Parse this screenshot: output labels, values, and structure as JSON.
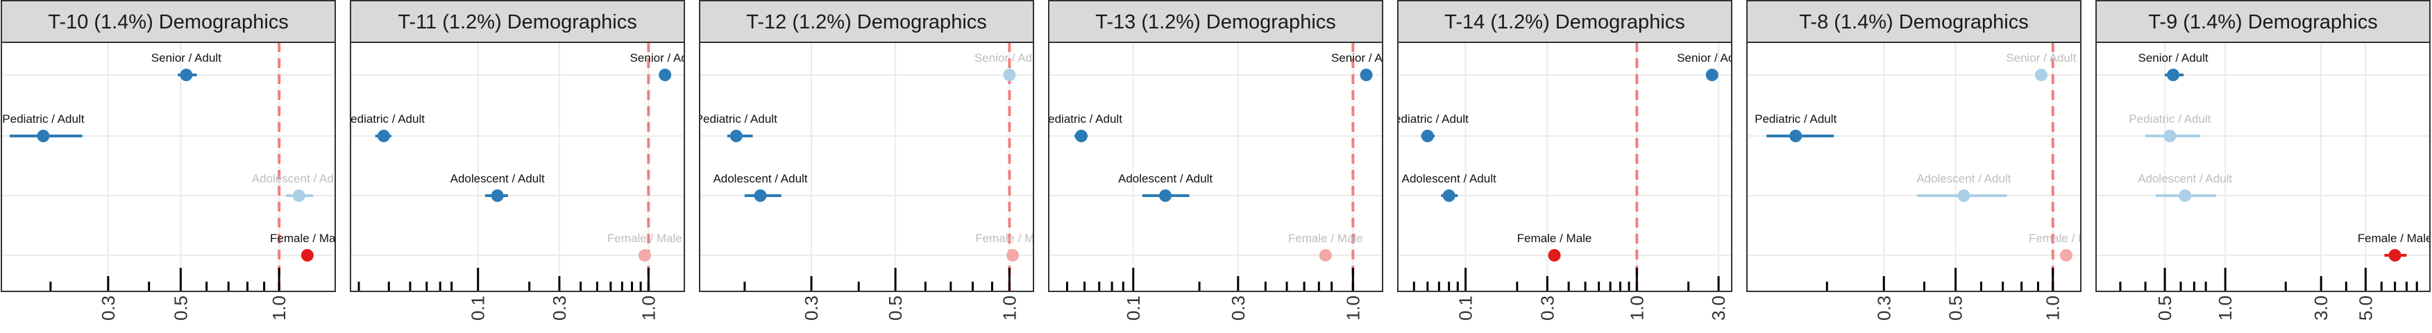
{
  "colors": {
    "male_or_adult_ref": "#d7191c",
    "strip_background": "#d9d9d9",
    "strip_border": "#333333",
    "panel_border": "#333333",
    "grid": "#ebebeb",
    "reference_line": "#f08080",
    "rug": "#000000",
    "significant_age": "#2c7bb6",
    "nonsignificant_age": "#abd0e6",
    "significant_sex": "#e31a1c",
    "nonsignificant_sex": "#f4a9a8"
  },
  "chart_data": [
    {
      "type": "forest",
      "title": "T-10 (1.4%) Demographics",
      "x_scale": "log",
      "xlim": [
        0.15,
        1.4
      ],
      "tick_labels": [
        "0.3",
        "0.5",
        "1.0"
      ],
      "ticks": [
        0.3,
        0.5,
        1.0
      ],
      "reference_line": 1.0,
      "rug": [
        0.2,
        0.3,
        0.4,
        0.5,
        0.6,
        0.7,
        0.8,
        0.9,
        1.0
      ],
      "rows": [
        {
          "label": "Senior / Adult",
          "estimate": 0.52,
          "lower": 0.49,
          "upper": 0.56,
          "significant": true,
          "kind": "age"
        },
        {
          "label": "Pediatric / Adult",
          "estimate": 0.19,
          "lower": 0.15,
          "upper": 0.25,
          "significant": true,
          "kind": "age"
        },
        {
          "label": "Adolescent / Adult",
          "estimate": 1.15,
          "lower": 1.05,
          "upper": 1.27,
          "significant": false,
          "kind": "age"
        },
        {
          "label": "Female / Male",
          "estimate": 1.22,
          "lower": 1.18,
          "upper": 1.26,
          "significant": true,
          "kind": "sex"
        }
      ]
    },
    {
      "type": "forest",
      "title": "T-11 (1.2%) Demographics",
      "x_scale": "log",
      "xlim": [
        0.02,
        1.45
      ],
      "tick_labels": [
        "0.1",
        "0.3",
        "1.0"
      ],
      "ticks": [
        0.1,
        0.3,
        1.0
      ],
      "reference_line": 1.0,
      "rug": [
        0.02,
        0.03,
        0.04,
        0.05,
        0.06,
        0.07,
        0.1,
        0.2,
        0.3,
        0.4,
        0.5,
        0.6,
        0.7,
        0.8,
        0.9,
        1.0
      ],
      "rows": [
        {
          "label": "Senior / Adult",
          "estimate": 1.25,
          "lower": 1.2,
          "upper": 1.3,
          "significant": true,
          "kind": "age"
        },
        {
          "label": "Pediatric / Adult",
          "estimate": 0.028,
          "lower": 0.025,
          "upper": 0.031,
          "significant": true,
          "kind": "age"
        },
        {
          "label": "Adolescent / Adult",
          "estimate": 0.13,
          "lower": 0.11,
          "upper": 0.15,
          "significant": true,
          "kind": "age"
        },
        {
          "label": "Female / Male",
          "estimate": 0.95,
          "lower": 0.92,
          "upper": 0.98,
          "significant": false,
          "kind": "sex"
        }
      ]
    },
    {
      "type": "forest",
      "title": "T-12 (1.2%) Demographics",
      "x_scale": "log",
      "xlim": [
        0.16,
        1.1
      ],
      "tick_labels": [
        "0.3",
        "0.5",
        "1.0"
      ],
      "ticks": [
        0.3,
        0.5,
        1.0
      ],
      "reference_line": 1.0,
      "rug": [
        0.2,
        0.3,
        0.4,
        0.5,
        0.6,
        0.7,
        0.8,
        0.9,
        1.0
      ],
      "rows": [
        {
          "label": "Senior / Adult",
          "estimate": 1.0,
          "lower": 0.97,
          "upper": 1.03,
          "significant": false,
          "kind": "age"
        },
        {
          "label": "Pediatric / Adult",
          "estimate": 0.19,
          "lower": 0.18,
          "upper": 0.21,
          "significant": true,
          "kind": "age"
        },
        {
          "label": "Adolescent / Adult",
          "estimate": 0.22,
          "lower": 0.2,
          "upper": 0.25,
          "significant": true,
          "kind": "age"
        },
        {
          "label": "Female / Male",
          "estimate": 1.02,
          "lower": 1.0,
          "upper": 1.04,
          "significant": false,
          "kind": "sex"
        }
      ]
    },
    {
      "type": "forest",
      "title": "T-13 (1.2%) Demographics",
      "x_scale": "log",
      "xlim": [
        0.045,
        1.25
      ],
      "tick_labels": [
        "0.1",
        "0.3",
        "1.0"
      ],
      "ticks": [
        0.1,
        0.3,
        1.0
      ],
      "reference_line": 1.0,
      "rug": [
        0.05,
        0.06,
        0.07,
        0.08,
        0.09,
        0.1,
        0.2,
        0.3,
        0.4,
        0.5,
        0.6,
        0.7,
        0.8,
        1.0
      ],
      "rows": [
        {
          "label": "Senior / Adult",
          "estimate": 1.15,
          "lower": 1.12,
          "upper": 1.18,
          "significant": true,
          "kind": "age"
        },
        {
          "label": "Pediatric / Adult",
          "estimate": 0.058,
          "lower": 0.054,
          "upper": 0.062,
          "significant": true,
          "kind": "age"
        },
        {
          "label": "Adolescent / Adult",
          "estimate": 0.14,
          "lower": 0.11,
          "upper": 0.18,
          "significant": true,
          "kind": "age"
        },
        {
          "label": "Female / Male",
          "estimate": 0.75,
          "lower": 0.72,
          "upper": 0.78,
          "significant": false,
          "kind": "sex"
        }
      ]
    },
    {
      "type": "forest",
      "title": "T-14 (1.2%) Demographics",
      "x_scale": "log",
      "xlim": [
        0.045,
        3.2
      ],
      "tick_labels": [
        "0.1",
        "0.3",
        "1.0",
        "3.0"
      ],
      "ticks": [
        0.1,
        0.3,
        1.0,
        3.0
      ],
      "reference_line": 1.0,
      "rug": [
        0.05,
        0.06,
        0.07,
        0.08,
        0.09,
        0.1,
        0.2,
        0.3,
        0.4,
        0.5,
        0.6,
        0.7,
        0.8,
        0.9,
        1.0,
        2.0,
        3.0
      ],
      "rows": [
        {
          "label": "Senior / Adult",
          "estimate": 2.75,
          "lower": 2.65,
          "upper": 2.85,
          "significant": true,
          "kind": "age"
        },
        {
          "label": "Pediatric / Adult",
          "estimate": 0.06,
          "lower": 0.055,
          "upper": 0.066,
          "significant": true,
          "kind": "age"
        },
        {
          "label": "Adolescent / Adult",
          "estimate": 0.08,
          "lower": 0.072,
          "upper": 0.09,
          "significant": true,
          "kind": "age"
        },
        {
          "label": "Female / Male",
          "estimate": 0.33,
          "lower": 0.315,
          "upper": 0.345,
          "significant": true,
          "kind": "sex"
        }
      ]
    },
    {
      "type": "forest",
      "title": "T-8 (1.4%) Demographics",
      "x_scale": "log",
      "xlim": [
        0.12,
        1.15
      ],
      "tick_labels": [
        "0.3",
        "0.5",
        "1.0"
      ],
      "ticks": [
        0.3,
        0.5,
        1.0
      ],
      "reference_line": 1.0,
      "rug": [
        0.2,
        0.3,
        0.4,
        0.5,
        0.6,
        0.7,
        0.8,
        0.9,
        1.0
      ],
      "rows": [
        {
          "label": "Senior / Adult",
          "estimate": 0.92,
          "lower": 0.88,
          "upper": 0.96,
          "significant": false,
          "kind": "age"
        },
        {
          "label": "Pediatric / Adult",
          "estimate": 0.16,
          "lower": 0.13,
          "upper": 0.21,
          "significant": true,
          "kind": "age"
        },
        {
          "label": "Adolescent / Adult",
          "estimate": 0.53,
          "lower": 0.38,
          "upper": 0.72,
          "significant": false,
          "kind": "age"
        },
        {
          "label": "Female / Male",
          "estimate": 1.1,
          "lower": 1.07,
          "upper": 1.13,
          "significant": false,
          "kind": "sex"
        }
      ]
    },
    {
      "type": "forest",
      "title": "T-9 (1.4%) Demographics",
      "x_scale": "log",
      "xlim": [
        0.25,
        9.5
      ],
      "tick_labels": [
        "0.5",
        "1.0",
        "3.0",
        "5.0"
      ],
      "ticks": [
        0.5,
        1.0,
        3.0,
        5.0
      ],
      "reference_line": null,
      "rug": [
        0.3,
        0.4,
        0.5,
        0.6,
        0.7,
        0.8,
        1.0,
        2.0,
        3.0,
        4.0,
        5.0,
        6.0,
        7.0,
        8.0,
        9.0
      ],
      "rows": [
        {
          "label": "Senior / Adult",
          "estimate": 0.55,
          "lower": 0.5,
          "upper": 0.62,
          "significant": true,
          "kind": "age"
        },
        {
          "label": "Pediatric / Adult",
          "estimate": 0.53,
          "lower": 0.4,
          "upper": 0.75,
          "significant": false,
          "kind": "age"
        },
        {
          "label": "Adolescent / Adult",
          "estimate": 0.63,
          "lower": 0.45,
          "upper": 0.9,
          "significant": false,
          "kind": "age"
        },
        {
          "label": "Female / Male",
          "estimate": 7.0,
          "lower": 6.2,
          "upper": 8.0,
          "significant": true,
          "kind": "sex"
        }
      ]
    }
  ]
}
